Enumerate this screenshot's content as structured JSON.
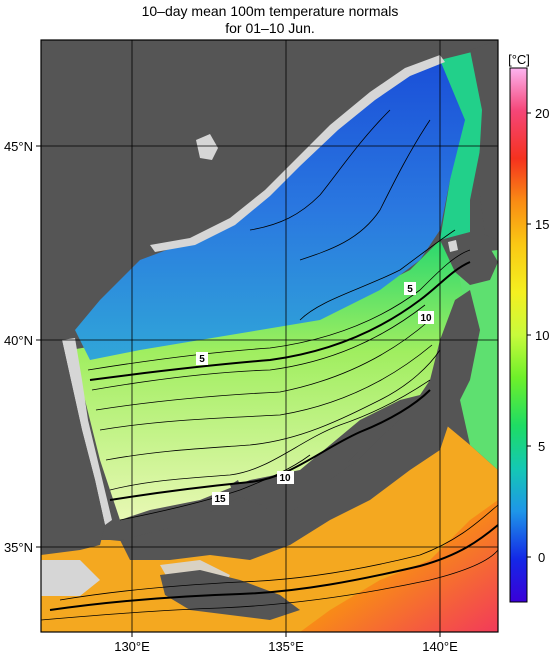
{
  "title": {
    "line1": "10–day mean 100m temperature normals",
    "line2": "for 01–10 Jun."
  },
  "axes": {
    "lon_ticks": [
      "130°E",
      "135°E",
      "140°E"
    ],
    "lat_ticks": [
      "45°N",
      "40°N",
      "35°N"
    ],
    "lon_range": [
      127,
      142
    ],
    "lat_range": [
      33,
      47.5
    ]
  },
  "colorbar": {
    "unit": "[°C]",
    "ticks": [
      "20",
      "15",
      "10",
      "5",
      "0"
    ],
    "range": [
      -2,
      22
    ]
  },
  "contour_labels": [
    "5",
    "10",
    "5",
    "10",
    "15"
  ],
  "colors": {
    "land": "#555555",
    "nodata": "#d6d6d6",
    "grid": "#000000"
  }
}
